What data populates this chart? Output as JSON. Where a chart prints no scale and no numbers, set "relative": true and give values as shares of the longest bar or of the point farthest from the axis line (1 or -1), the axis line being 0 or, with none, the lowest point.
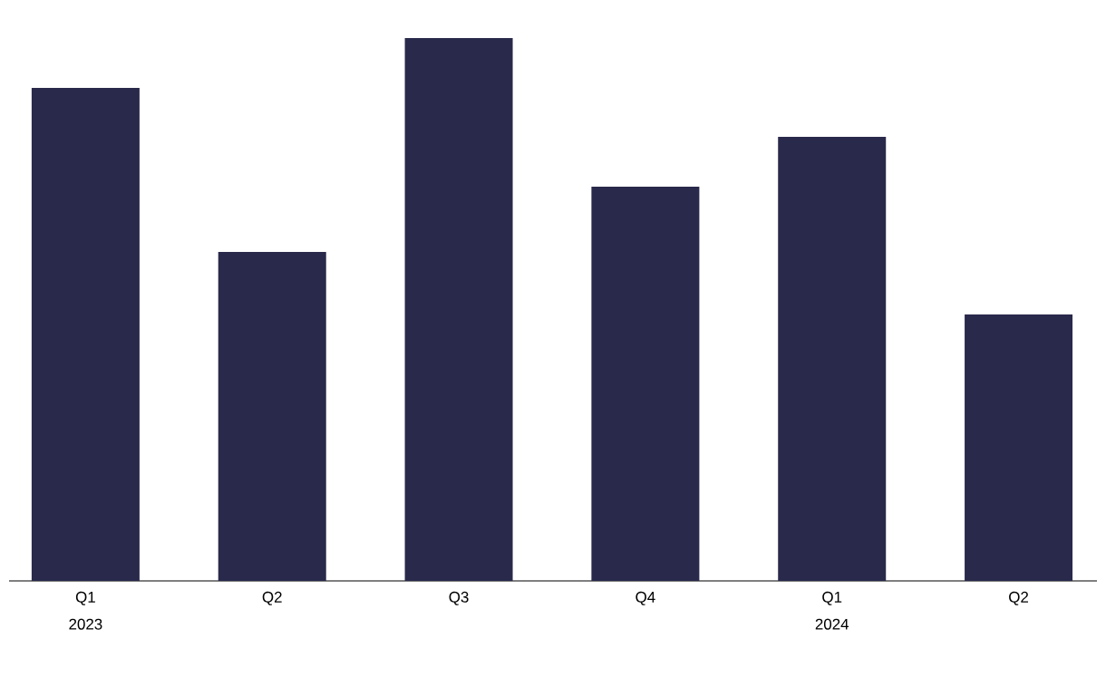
{
  "chart_data": {
    "type": "bar",
    "relative": true,
    "categories": [
      "Q1 2023",
      "Q2",
      "Q3",
      "Q4",
      "Q1 2024",
      "Q2"
    ],
    "values": [
      0.908,
      0.606,
      1,
      0.726,
      0.818,
      0.491
    ],
    "color": "#29294b"
  }
}
